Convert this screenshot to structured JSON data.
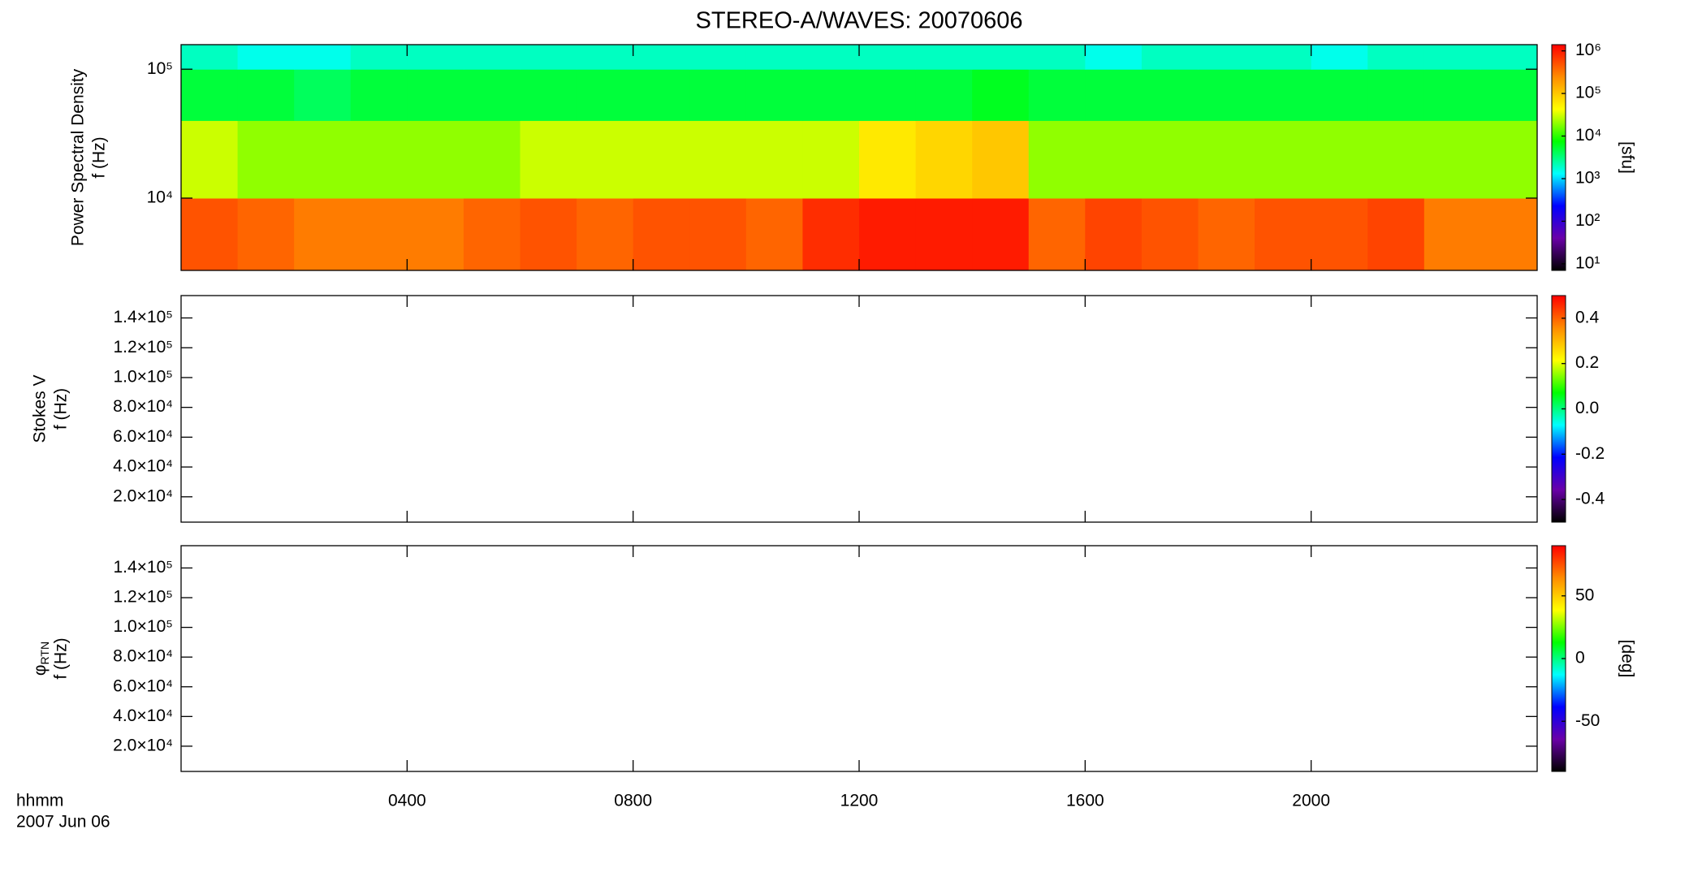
{
  "chart_data": [
    {
      "type": "heatmap",
      "title": "STEREO-A/WAVES: 20070606",
      "ylabel": [
        "Power Spectral Density",
        "f (Hz)"
      ],
      "yscale": "log",
      "ylim": [
        2750,
        155000
      ],
      "yticks": [
        {
          "value": 10000,
          "label": "10⁴"
        },
        {
          "value": 100000,
          "label": "10⁵"
        }
      ],
      "xlim": [
        0,
        24
      ],
      "xticks": [
        {
          "value": 4,
          "label": "0400"
        },
        {
          "value": 8,
          "label": "0800"
        },
        {
          "value": 12,
          "label": "1200"
        },
        {
          "value": 16,
          "label": "1600"
        },
        {
          "value": 20,
          "label": "2000"
        }
      ],
      "x_edges": [
        0,
        1,
        2,
        3,
        4,
        5,
        6,
        7,
        8,
        9,
        10,
        11,
        12,
        13,
        14,
        15,
        16,
        17,
        18,
        19,
        20,
        21,
        22,
        23,
        24
      ],
      "y_edges": [
        2750,
        10000,
        40000,
        100000,
        155000
      ],
      "z": [
        [
          500000,
          400000,
          300000,
          300000,
          300000,
          400000,
          500000,
          400000,
          500000,
          500000,
          400000,
          800000,
          1000000,
          1000000,
          1000000,
          400000,
          600000,
          500000,
          400000,
          500000,
          500000,
          600000,
          300000,
          300000
        ],
        [
          30000,
          20000,
          20000,
          20000,
          20000,
          20000,
          30000,
          30000,
          30000,
          30000,
          30000,
          30000,
          60000,
          80000,
          100000,
          20000,
          20000,
          20000,
          20000,
          20000,
          20000,
          20000,
          20000,
          20000
        ],
        [
          5000,
          5000,
          4000,
          5000,
          5000,
          5000,
          5000,
          5000,
          5000,
          5000,
          5000,
          5000,
          5000,
          5000,
          6000,
          5000,
          5000,
          5000,
          5000,
          5000,
          5000,
          5000,
          5000,
          5000
        ],
        [
          2000,
          1500,
          1500,
          2000,
          2000,
          2000,
          2000,
          2000,
          2000,
          2000,
          2000,
          2000,
          2000,
          2000,
          2000,
          2000,
          1500,
          2000,
          2000,
          2000,
          1500,
          2000,
          2000,
          2000
        ]
      ],
      "zscale": "log",
      "zlim": [
        7,
        1400000
      ],
      "zticks": [
        {
          "value": 10,
          "label": "10¹"
        },
        {
          "value": 100,
          "label": "10²"
        },
        {
          "value": 1000,
          "label": "10³"
        },
        {
          "value": 10000,
          "label": "10⁴"
        },
        {
          "value": 100000,
          "label": "10⁵"
        },
        {
          "value": 1000000,
          "label": "10⁶"
        }
      ],
      "zlabel": "[sfu]",
      "colormap": [
        "#000000",
        "#6a00a8",
        "#0000ff",
        "#00ffff",
        "#00ff00",
        "#ffff00",
        "#ff8c00",
        "#ff0000"
      ]
    },
    {
      "type": "heatmap",
      "ylabel": [
        "Stokes V",
        "f (Hz)"
      ],
      "yscale": "linear",
      "ylim": [
        3000,
        155000
      ],
      "yticks": [
        {
          "value": 20000,
          "label": "2.0×10⁴"
        },
        {
          "value": 40000,
          "label": "4.0×10⁴"
        },
        {
          "value": 60000,
          "label": "6.0×10⁴"
        },
        {
          "value": 80000,
          "label": "8.0×10⁴"
        },
        {
          "value": 100000,
          "label": "1.0×10⁵"
        },
        {
          "value": 120000,
          "label": "1.2×10⁵"
        },
        {
          "value": 140000,
          "label": "1.4×10⁵"
        }
      ],
      "xlim": [
        0,
        24
      ],
      "xticks": [
        {
          "value": 4,
          "label": "0400"
        },
        {
          "value": 8,
          "label": "0800"
        },
        {
          "value": 12,
          "label": "1200"
        },
        {
          "value": 16,
          "label": "1600"
        },
        {
          "value": 20,
          "label": "2000"
        }
      ],
      "zscale": "linear",
      "zlim": [
        -0.5,
        0.5
      ],
      "zticks": [
        -0.4,
        -0.2,
        {
          "value": 0,
          "label": "0.0"
        },
        0.2,
        0.4
      ],
      "colormap": [
        "#000000",
        "#6a00a8",
        "#0000ff",
        "#00ffff",
        "#00ff00",
        "#ffff00",
        "#ff8c00",
        "#ff0000"
      ]
    },
    {
      "type": "heatmap",
      "ylabel": [
        {
          "text": "φ",
          "sub": "RTN"
        },
        "f (Hz)"
      ],
      "yscale": "linear",
      "ylim": [
        3000,
        155000
      ],
      "yticks": [
        {
          "value": 20000,
          "label": "2.0×10⁴"
        },
        {
          "value": 40000,
          "label": "4.0×10⁴"
        },
        {
          "value": 60000,
          "label": "6.0×10⁴"
        },
        {
          "value": 80000,
          "label": "8.0×10⁴"
        },
        {
          "value": 100000,
          "label": "1.0×10⁵"
        },
        {
          "value": 120000,
          "label": "1.2×10⁵"
        },
        {
          "value": 140000,
          "label": "1.4×10⁵"
        }
      ],
      "xlim": [
        0,
        24
      ],
      "xticks": [
        {
          "value": 4,
          "label": "0400"
        },
        {
          "value": 8,
          "label": "0800"
        },
        {
          "value": 12,
          "label": "1200"
        },
        {
          "value": 16,
          "label": "1600"
        },
        {
          "value": 20,
          "label": "2000"
        }
      ],
      "xlabel": [
        "hhmm",
        "2007 Jun 06"
      ],
      "zscale": "linear",
      "zlim": [
        -90,
        90
      ],
      "zticks": [
        -50,
        0,
        50
      ],
      "zlabel": "[deg]",
      "colormap": [
        "#000000",
        "#6a00a8",
        "#0000ff",
        "#00ffff",
        "#00ff00",
        "#ffff00",
        "#ff8c00",
        "#ff0000"
      ]
    }
  ]
}
